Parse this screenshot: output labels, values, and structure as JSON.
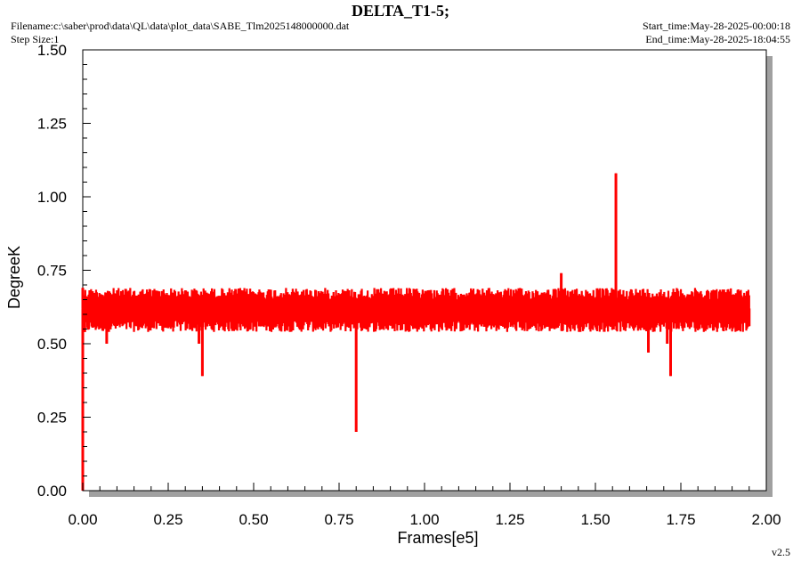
{
  "header": {
    "title": "DELTA_T1-5;",
    "filename": "Filename:c:\\saber\\prod\\data\\QL\\data\\plot_data\\SABE_Tlm2025148000000.dat",
    "step_size": "Step Size:1",
    "start_time": "Start_time:May-28-2025-00:00:18",
    "end_time": "End_time:May-28-2025-18:04:55",
    "version": "v2.5"
  },
  "colors": {
    "series": "#ff0000",
    "shadow": "#a0a0a0",
    "plot_bg": "#ffffff"
  },
  "chart_data": {
    "type": "line",
    "title": "DELTA_T1-5;",
    "xlabel": "Frames[e5]",
    "ylabel": "DegreeK",
    "xlim": [
      0,
      2.0
    ],
    "ylim": [
      0,
      1.5
    ],
    "xticks": [
      "0.00",
      "0.25",
      "0.50",
      "0.75",
      "1.00",
      "1.25",
      "1.50",
      "1.75",
      "2.00"
    ],
    "yticks": [
      "0.00",
      "0.25",
      "0.50",
      "0.75",
      "1.00",
      "1.25",
      "1.50"
    ],
    "grid": false,
    "series": [
      {
        "color": "#ff0000",
        "x_range": [
          0,
          1.95
        ],
        "baseline": 0.62,
        "noise_band": [
          0.54,
          0.69
        ],
        "points": [
          {
            "x": 0.0,
            "y": 0.0
          },
          {
            "x": 0.0,
            "y": 0.69
          },
          {
            "x": 0.006,
            "y": 0.54
          },
          {
            "x": 0.07,
            "y": 0.5
          },
          {
            "x": 0.34,
            "y": 0.5
          },
          {
            "x": 0.35,
            "y": 0.39
          },
          {
            "x": 0.8,
            "y": 0.2
          },
          {
            "x": 1.4,
            "y": 0.74
          },
          {
            "x": 1.56,
            "y": 1.08
          },
          {
            "x": 1.655,
            "y": 0.47
          },
          {
            "x": 1.71,
            "y": 0.5
          },
          {
            "x": 1.72,
            "y": 0.39
          },
          {
            "x": 1.95,
            "y": 0.56
          }
        ]
      }
    ]
  }
}
